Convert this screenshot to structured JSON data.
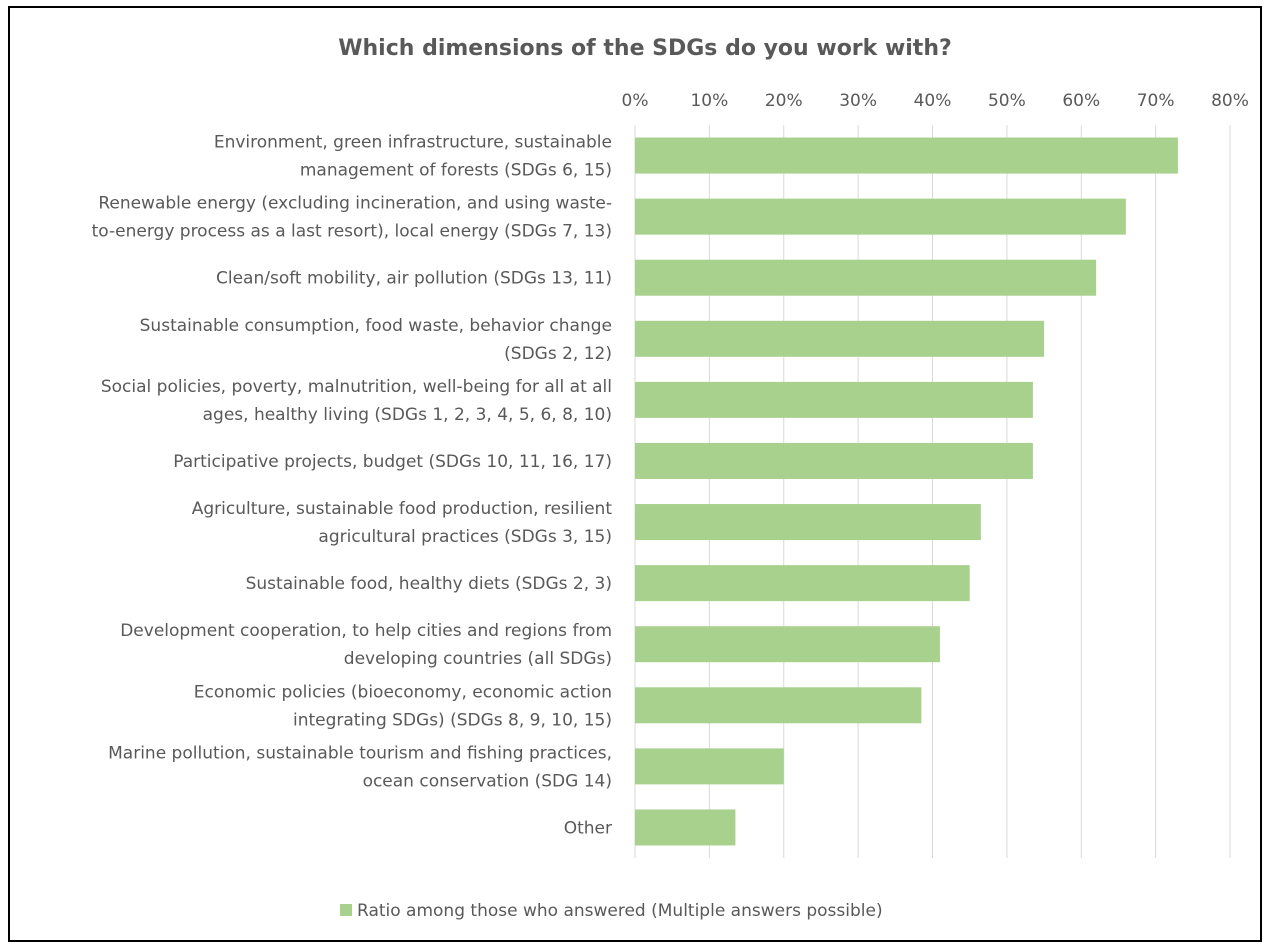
{
  "chart_data": {
    "type": "bar",
    "orientation": "horizontal",
    "title": "Which dimensions of the SDGs do you work with?",
    "xlim": [
      0,
      80
    ],
    "x_tick_labels": [
      "0%",
      "10%",
      "20%",
      "30%",
      "40%",
      "50%",
      "60%",
      "70%",
      "80%"
    ],
    "x_ticks": [
      0,
      10,
      20,
      30,
      40,
      50,
      60,
      70,
      80
    ],
    "axis_position": "top",
    "grid": true,
    "bar_color": "#a9d18e",
    "categories": [
      [
        "Environment, green infrastructure, sustainable",
        "management of forests (SDGs 6, 15)"
      ],
      [
        "Renewable energy (excluding incineration, and using waste-",
        "to-energy process as a last resort), local energy (SDGs 7, 13)"
      ],
      [
        "Clean/soft mobility, air pollution (SDGs 13, 11)"
      ],
      [
        "Sustainable consumption, food waste, behavior change",
        "(SDGs 2, 12)"
      ],
      [
        "Social policies, poverty, malnutrition, well-being for all at all",
        "ages, healthy living (SDGs 1, 2, 3, 4, 5, 6, 8, 10)"
      ],
      [
        "Participative projects, budget (SDGs 10, 11, 16, 17)"
      ],
      [
        "Agriculture, sustainable food production, resilient",
        "agricultural practices (SDGs 3, 15)"
      ],
      [
        "Sustainable food, healthy diets (SDGs 2, 3)"
      ],
      [
        "Development cooperation, to help cities and regions from",
        "developing countries (all SDGs)"
      ],
      [
        "Economic policies (bioeconomy, economic action",
        "integrating SDGs) (SDGs 8, 9, 10, 15)"
      ],
      [
        "Marine pollution, sustainable tourism and fishing practices,",
        "ocean conservation (SDG 14)"
      ],
      [
        "Other"
      ]
    ],
    "series": [
      {
        "name": "Ratio among those who answered (Multiple answers possible)",
        "values": [
          73,
          66,
          62,
          55,
          53.5,
          53.5,
          46.5,
          45,
          41,
          38.5,
          20,
          13.5
        ]
      }
    ],
    "legend": "bottom"
  }
}
